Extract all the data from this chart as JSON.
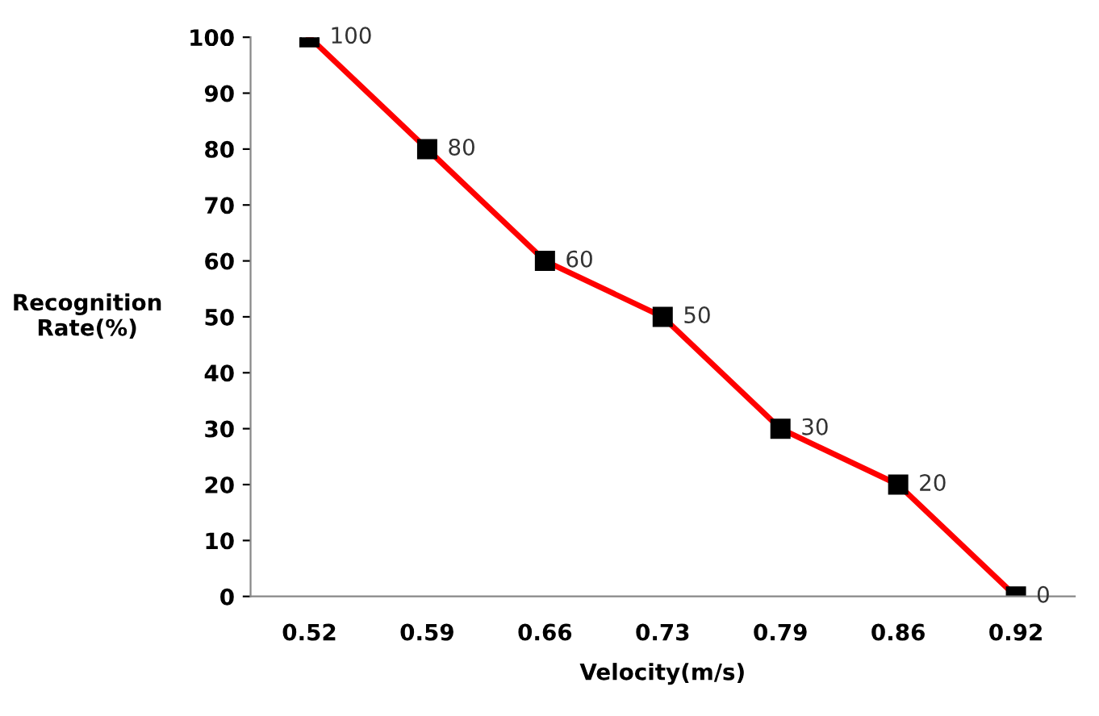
{
  "chart_data": {
    "type": "line",
    "xlabel": "Velocity(m/s)",
    "ylabel": "Recognition Rate(%)",
    "categories": [
      "0.52",
      "0.59",
      "0.66",
      "0.73",
      "0.79",
      "0.86",
      "0.92"
    ],
    "series": [
      {
        "color": "#ff0000",
        "values": [
          100,
          80,
          60,
          50,
          30,
          20,
          0
        ]
      }
    ],
    "marker": "square",
    "line_style": "solid",
    "data_labels": true,
    "grid": false,
    "legend": false,
    "ylim": [
      0,
      100
    ],
    "yticks": [
      0,
      10,
      20,
      30,
      40,
      50,
      60,
      70,
      80,
      90,
      100
    ]
  }
}
